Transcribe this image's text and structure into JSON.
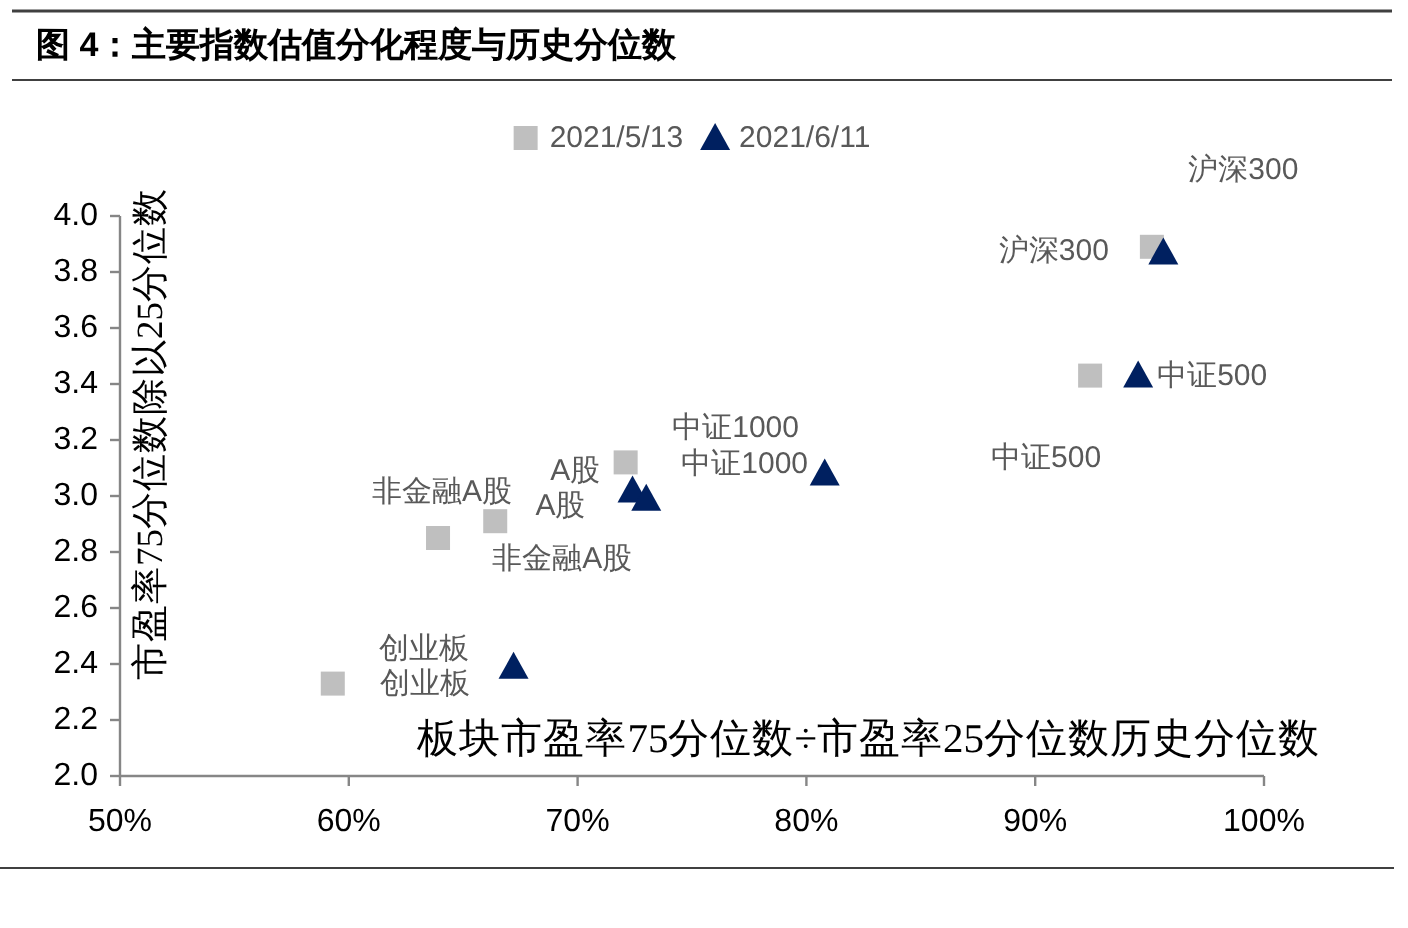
{
  "chart_data": {
    "type": "scatter",
    "title": "图 4：主要指数估值分化程度与历史分位数",
    "xlabel": "板块市盈率75分位数÷市盈率25分位数历史分位数",
    "ylabel": "市盈率75分位数除以25分位数",
    "legend": "top",
    "xlim": [
      50,
      100
    ],
    "xticks": [
      {
        "value": 50,
        "label": "50%"
      },
      {
        "value": 60,
        "label": "60%"
      },
      {
        "value": 70,
        "label": "70%"
      },
      {
        "value": 80,
        "label": "80%"
      },
      {
        "value": 90,
        "label": "90%"
      },
      {
        "value": 100,
        "label": "100%"
      }
    ],
    "ylim": [
      2,
      4
    ],
    "yticks": [
      {
        "value": 2,
        "label": "2.0"
      },
      2.2,
      2.4,
      2.6,
      2.8,
      {
        "value": 3,
        "label": "3.0"
      },
      3.2,
      3.4,
      3.6,
      3.8,
      {
        "value": 4,
        "label": "4.0"
      }
    ],
    "series": [
      {
        "name": "2021/5/13",
        "color": "#bfbfbf",
        "marker": "square",
        "x": [
          59.3,
          63.9,
          66.4,
          72.1,
          92.4,
          95.1
        ],
        "values": [
          2.33,
          2.85,
          2.91,
          3.12,
          3.43,
          3.89
        ]
      },
      {
        "name": "2021/6/11",
        "color": "#002060",
        "marker": "triangle",
        "x": [
          67.2,
          72.4,
          73.0,
          80.8,
          94.5,
          95.6
        ],
        "values": [
          2.39,
          3.02,
          2.99,
          3.08,
          3.43,
          3.87
        ]
      }
    ],
    "annotations": [
      {
        "text": "创业板",
        "x": 59.3,
        "y": 2.33
      },
      {
        "text": "非金融A股",
        "x": 63.9,
        "y": 2.85
      },
      {
        "text": "A股",
        "x": 66.4,
        "y": 2.91
      },
      {
        "text": "中证1000",
        "x": 72.1,
        "y": 3.12
      },
      {
        "text": "中证500",
        "x": 92.4,
        "y": 3.43
      },
      {
        "text": "沪深300",
        "x": 95.1,
        "y": 3.89
      },
      {
        "text": "创业板",
        "x": 67.2,
        "y": 2.39
      },
      {
        "text": "A股",
        "x": 72.4,
        "y": 3.02
      },
      {
        "text": "非金融A股",
        "x": 73.0,
        "y": 2.99
      },
      {
        "text": "中证1000",
        "x": 80.8,
        "y": 3.08
      },
      {
        "text": "中证500",
        "x": 94.5,
        "y": 3.43
      },
      {
        "text": "沪深300",
        "x": 95.6,
        "y": 3.87
      }
    ]
  }
}
